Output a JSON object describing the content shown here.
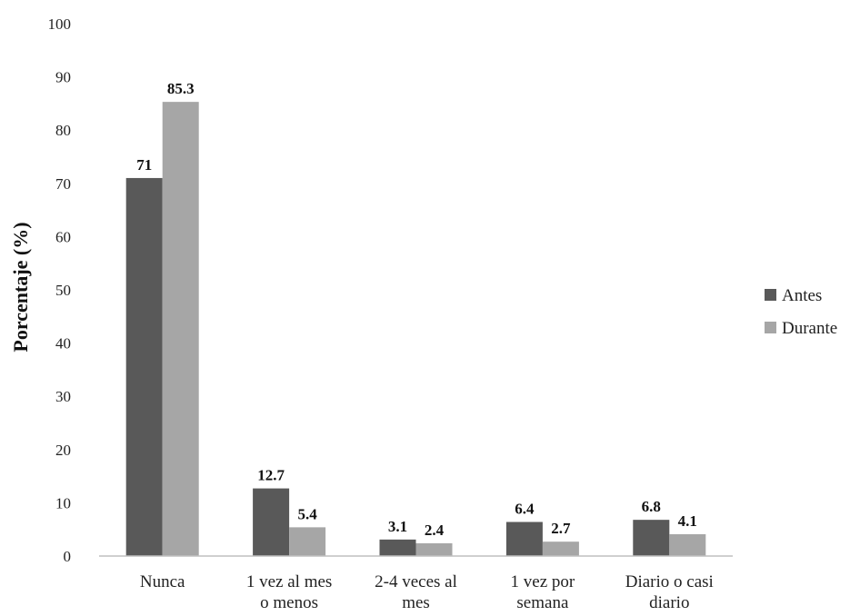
{
  "chart_data": {
    "type": "bar",
    "ylabel": "Porcentaje (%)",
    "ylim": [
      0,
      100
    ],
    "yticks": [
      0,
      10,
      20,
      30,
      40,
      50,
      60,
      70,
      80,
      90,
      100
    ],
    "grid": false,
    "legend_position": "right",
    "categories": [
      [
        "Nunca"
      ],
      [
        "1 vez al mes",
        "o menos"
      ],
      [
        "2-4 veces al",
        "mes"
      ],
      [
        "1 vez por",
        "semana"
      ],
      [
        "Diario o casi",
        "diario"
      ]
    ],
    "series": [
      {
        "name": "Antes",
        "color": "#595959",
        "values": [
          71,
          12.7,
          3.1,
          6.4,
          6.8
        ],
        "labels": [
          "71",
          "12.7",
          "3.1",
          "6.4",
          "6.8"
        ]
      },
      {
        "name": "Durante",
        "color": "#a6a6a6",
        "values": [
          85.3,
          5.4,
          2.4,
          2.7,
          4.1
        ],
        "labels": [
          "85.3",
          "5.4",
          "2.4",
          "2.7",
          "4.1"
        ]
      }
    ]
  }
}
